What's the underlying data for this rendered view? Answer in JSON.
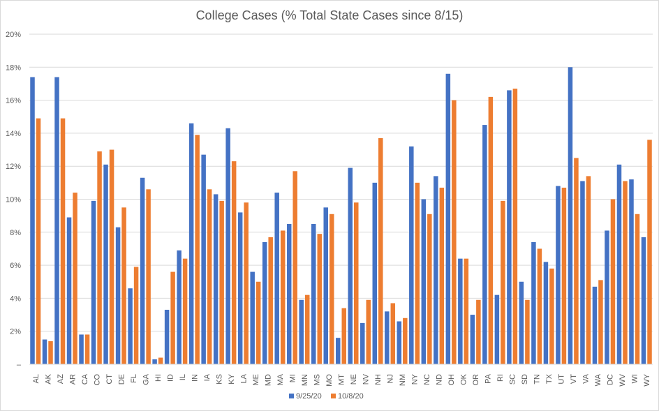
{
  "chart_data": {
    "type": "bar",
    "title": "College Cases (% Total State Cases since 8/15)",
    "xlabel": "",
    "ylabel": "",
    "ylim": [
      0,
      20
    ],
    "yticks": [
      "–",
      "2%",
      "4%",
      "6%",
      "8%",
      "10%",
      "12%",
      "14%",
      "16%",
      "18%",
      "20%"
    ],
    "ytick_values": [
      0,
      2,
      4,
      6,
      8,
      10,
      12,
      14,
      16,
      18,
      20
    ],
    "grid": true,
    "legend_position": "bottom",
    "categories": [
      "AL",
      "AK",
      "AZ",
      "AR",
      "CA",
      "CO",
      "CT",
      "DE",
      "FL",
      "GA",
      "HI",
      "ID",
      "IL",
      "IN",
      "IA",
      "KS",
      "KY",
      "LA",
      "ME",
      "MD",
      "MA",
      "MI",
      "MN",
      "MS",
      "MO",
      "MT",
      "NE",
      "NV",
      "NH",
      "NJ",
      "NM",
      "NY",
      "NC",
      "ND",
      "OH",
      "OK",
      "OR",
      "PA",
      "RI",
      "SC",
      "SD",
      "TN",
      "TX",
      "UT",
      "VT",
      "VA",
      "WA",
      "DC",
      "WV",
      "WI",
      "WY"
    ],
    "series": [
      {
        "name": "9/25/20",
        "color": "#4472c4",
        "values": [
          17.4,
          1.5,
          17.4,
          8.9,
          1.8,
          9.9,
          12.1,
          8.3,
          4.6,
          11.3,
          0.3,
          3.3,
          6.9,
          14.6,
          12.7,
          10.3,
          14.3,
          9.2,
          5.6,
          7.4,
          10.4,
          8.5,
          3.9,
          8.5,
          9.5,
          1.6,
          11.9,
          2.5,
          11.0,
          3.2,
          2.6,
          13.2,
          10.0,
          11.4,
          17.6,
          6.4,
          3.0,
          14.5,
          4.2,
          16.6,
          5.0,
          7.4,
          6.2,
          10.8,
          18.0,
          11.1,
          4.7,
          8.1,
          12.1,
          11.2,
          7.7
        ]
      },
      {
        "name": "10/8/20",
        "color": "#ed7d31",
        "values": [
          14.9,
          1.4,
          14.9,
          10.4,
          1.8,
          12.9,
          13.0,
          9.5,
          5.9,
          10.6,
          0.4,
          5.6,
          6.4,
          13.9,
          10.6,
          9.9,
          12.3,
          9.8,
          5.0,
          7.7,
          8.1,
          11.7,
          4.2,
          7.9,
          9.1,
          3.4,
          9.8,
          3.9,
          13.7,
          3.7,
          2.8,
          11.0,
          9.1,
          10.7,
          16.0,
          6.4,
          3.9,
          16.2,
          9.9,
          16.7,
          3.9,
          7.0,
          5.8,
          10.7,
          12.5,
          11.4,
          5.1,
          10.0,
          11.1,
          9.1,
          13.6
        ]
      }
    ]
  }
}
